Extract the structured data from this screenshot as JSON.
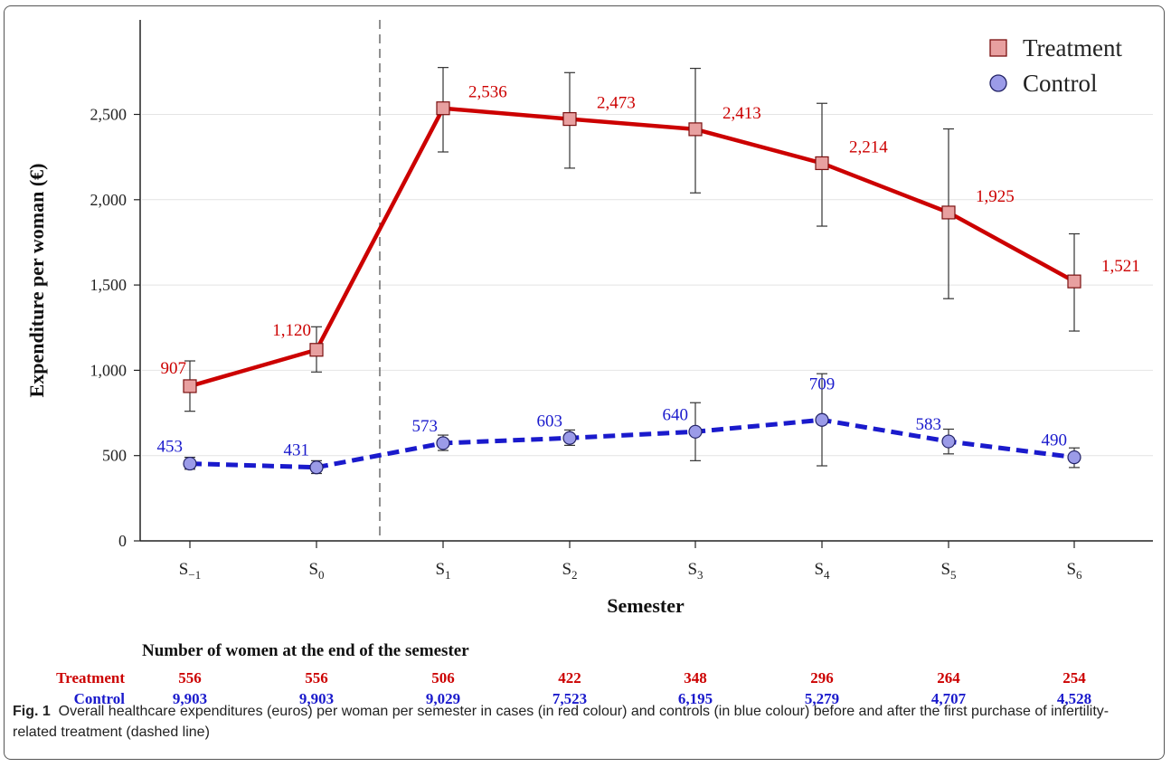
{
  "colors": {
    "treatment": "#cc0000",
    "control": "#1a1acc",
    "treatment_marker": "#e8a0a0",
    "control_marker": "#9b9be8"
  },
  "chart_data": {
    "type": "line",
    "xlabel": "Semester",
    "ylabel": "Expenditure per woman (€)",
    "ylim": [
      0,
      2900
    ],
    "yticks": [
      0,
      500,
      1000,
      1500,
      2000,
      2500
    ],
    "ytick_labels": [
      "0",
      "500",
      "1,000",
      "1,500",
      "2,000",
      "2,500"
    ],
    "categories": [
      {
        "base": "S",
        "sub": "−1"
      },
      {
        "base": "S",
        "sub": "0"
      },
      {
        "base": "S",
        "sub": "1"
      },
      {
        "base": "S",
        "sub": "2"
      },
      {
        "base": "S",
        "sub": "3"
      },
      {
        "base": "S",
        "sub": "4"
      },
      {
        "base": "S",
        "sub": "5"
      },
      {
        "base": "S",
        "sub": "6"
      }
    ],
    "grid": "horizontal",
    "legend_position": "top-right",
    "reference_line": {
      "between_categories": [
        1,
        2
      ],
      "style": "dashed"
    },
    "series": [
      {
        "name": "Treatment",
        "line_style": "solid",
        "marker": "square",
        "values": [
          907,
          1120,
          2536,
          2473,
          2413,
          2214,
          1925,
          1521
        ],
        "labels": [
          "907",
          "1,120",
          "2,536",
          "2,473",
          "2,413",
          "2,214",
          "1,925",
          "1,521"
        ],
        "error_low": [
          760,
          990,
          2280,
          2185,
          2040,
          1845,
          1420,
          1230
        ],
        "error_high": [
          1055,
          1255,
          2775,
          2745,
          2770,
          2565,
          2415,
          1800
        ]
      },
      {
        "name": "Control",
        "line_style": "dashed",
        "marker": "circle",
        "values": [
          453,
          431,
          573,
          603,
          640,
          709,
          583,
          490
        ],
        "labels": [
          "453",
          "431",
          "573",
          "603",
          "640",
          "709",
          "583",
          "490"
        ],
        "error_low": [
          420,
          395,
          530,
          560,
          470,
          440,
          510,
          430
        ],
        "error_high": [
          490,
          470,
          620,
          650,
          810,
          980,
          655,
          545
        ]
      }
    ]
  },
  "counts_table": {
    "title": "Number of women at the end of the semester",
    "rows": [
      {
        "label": "Treatment",
        "values": [
          "556",
          "556",
          "506",
          "422",
          "348",
          "296",
          "264",
          "254"
        ]
      },
      {
        "label": "Control",
        "values": [
          "9,903",
          "9,903",
          "9,029",
          "7,523",
          "6,195",
          "5,279",
          "4,707",
          "4,528"
        ]
      }
    ]
  },
  "caption": {
    "fig_label": "Fig. 1",
    "text": "Overall healthcare expenditures (euros) per woman per semester in cases (in red colour) and controls (in blue colour) before and after the first purchase of infertility-related treatment (dashed line)"
  }
}
